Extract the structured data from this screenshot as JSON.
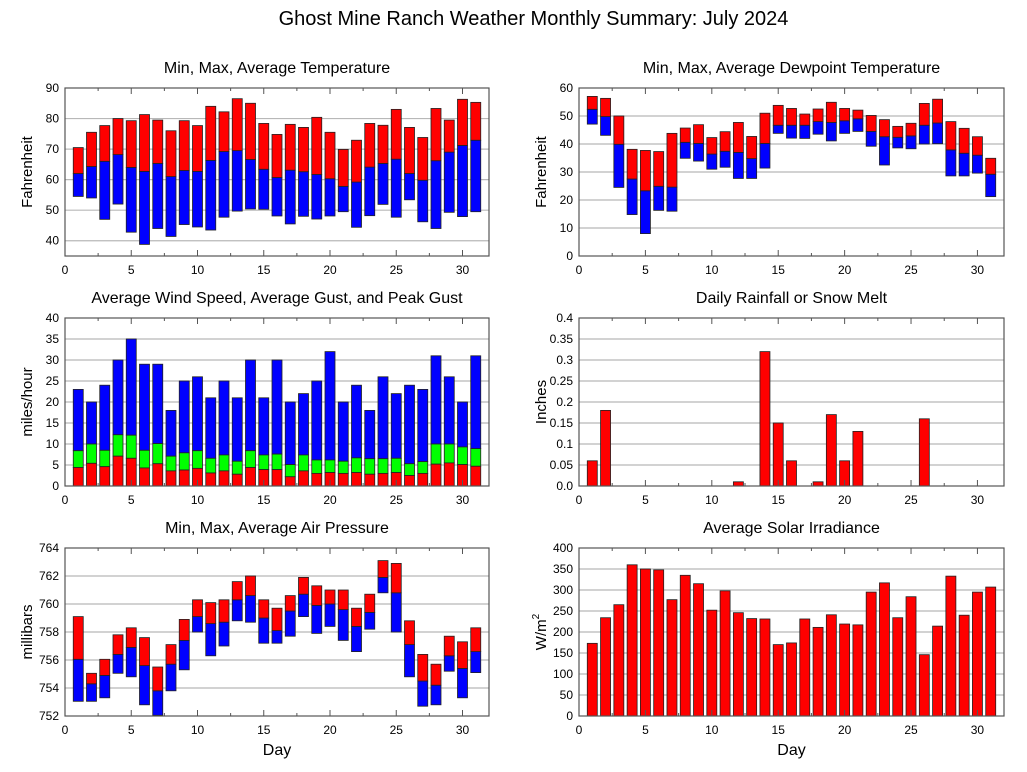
{
  "title": "Ghost Mine Ranch Weather Monthly Summary: July 2024",
  "colors": {
    "red": "#ff0000",
    "blue": "#0000ff",
    "green": "#00ff00",
    "grid": "#b8b8b8",
    "frame": "#555555"
  },
  "chart_data": [
    {
      "id": "temperature",
      "type": "bar",
      "title": "Min, Max, Average Temperature",
      "xlabel": "",
      "ylabel": "Fahrenheit",
      "xlim": [
        0,
        32
      ],
      "ylim": [
        35,
        90
      ],
      "xticks": [
        0,
        5,
        10,
        15,
        20,
        25,
        30
      ],
      "yticks": [
        40,
        50,
        60,
        70,
        80,
        90
      ],
      "grid": true,
      "x": [
        1,
        2,
        3,
        4,
        5,
        6,
        7,
        8,
        9,
        10,
        11,
        12,
        13,
        14,
        15,
        16,
        17,
        18,
        19,
        20,
        21,
        22,
        23,
        24,
        25,
        26,
        27,
        28,
        29,
        30,
        31
      ],
      "series": [
        {
          "name": "Min",
          "values": [
            54.5,
            54,
            47,
            52,
            42.8,
            38.8,
            44,
            41.4,
            45.3,
            44.5,
            43.5,
            47.7,
            49.7,
            50.4,
            50.3,
            48.1,
            45.5,
            48,
            47.1,
            48.1,
            49.5,
            44.4,
            48.2,
            51.9,
            47.7,
            53.4,
            46.2,
            44,
            49.3,
            47.9,
            49.5
          ]
        },
        {
          "name": "Average",
          "values": [
            62,
            64.3,
            66,
            68.2,
            64,
            62.7,
            65.3,
            61,
            63,
            62.7,
            66.3,
            69.2,
            69.5,
            66.6,
            63.4,
            60.7,
            63.1,
            62.6,
            61.7,
            60.3,
            57.8,
            59.2,
            64.1,
            65.3,
            66.7,
            62,
            59.8,
            66.2,
            69,
            71.2,
            72.9
          ]
        },
        {
          "name": "Max",
          "values": [
            70.5,
            75.5,
            77.7,
            80,
            79.3,
            81.3,
            79.5,
            76,
            79.3,
            77.7,
            84,
            82.2,
            86.5,
            85,
            78.4,
            74.8,
            78.1,
            77.1,
            80.4,
            75.5,
            69.9,
            72.9,
            78.4,
            77.8,
            83,
            77.1,
            73.8,
            83.3,
            79.5,
            86.3,
            85.3
          ]
        }
      ]
    },
    {
      "id": "dewpoint",
      "type": "bar",
      "title": "Min, Max, Average Dewpoint Temperature",
      "xlabel": "",
      "ylabel": "Fahrenheit",
      "xlim": [
        0,
        32
      ],
      "ylim": [
        0,
        60
      ],
      "xticks": [
        0,
        5,
        10,
        15,
        20,
        25,
        30
      ],
      "yticks": [
        0,
        10,
        20,
        30,
        40,
        50,
        60
      ],
      "grid": true,
      "x": [
        1,
        2,
        3,
        4,
        5,
        6,
        7,
        8,
        9,
        10,
        11,
        12,
        13,
        14,
        15,
        16,
        17,
        18,
        19,
        20,
        21,
        22,
        23,
        24,
        25,
        26,
        27,
        28,
        29,
        30,
        31
      ],
      "series": [
        {
          "name": "Min",
          "values": [
            47.1,
            43.1,
            24.5,
            14.8,
            8,
            16.3,
            16,
            34.9,
            33.9,
            31,
            31.7,
            27.7,
            27.7,
            31.4,
            43.8,
            42.1,
            42,
            43.5,
            41.1,
            43.8,
            44.5,
            39.2,
            32.5,
            38.6,
            38.3,
            40,
            40.1,
            28.6,
            28.6,
            29.6,
            21.2
          ]
        },
        {
          "name": "Average",
          "values": [
            52.4,
            49.8,
            39.9,
            27.5,
            23.3,
            24.9,
            24.6,
            40.6,
            40.2,
            36.4,
            37.4,
            37,
            34.8,
            40.2,
            46.7,
            46.7,
            46.7,
            48,
            47.7,
            48.3,
            49,
            44.5,
            42.6,
            42.4,
            42.9,
            46.7,
            47.5,
            37.9,
            36.7,
            36,
            29.2
          ]
        },
        {
          "name": "Max",
          "values": [
            57,
            56.3,
            50,
            38.1,
            37.7,
            37.3,
            43.8,
            45.7,
            46.9,
            42.3,
            44.4,
            47.7,
            42.7,
            51,
            53.8,
            52.7,
            50.7,
            52.5,
            54.9,
            52.7,
            52.1,
            50.2,
            48.7,
            46.3,
            47.4,
            54.5,
            56,
            48,
            45.6,
            42.6,
            34.9
          ]
        }
      ]
    },
    {
      "id": "wind",
      "type": "bar",
      "title": "Average Wind Speed, Average Gust, and Peak Gust",
      "xlabel": "",
      "ylabel": "miles/hour",
      "xlim": [
        0,
        32
      ],
      "ylim": [
        0,
        40
      ],
      "xticks": [
        0,
        5,
        10,
        15,
        20,
        25,
        30
      ],
      "yticks": [
        0,
        5,
        10,
        15,
        20,
        25,
        30,
        35,
        40
      ],
      "grid": true,
      "x": [
        1,
        2,
        3,
        4,
        5,
        6,
        7,
        8,
        9,
        10,
        11,
        12,
        13,
        14,
        15,
        16,
        17,
        18,
        19,
        20,
        21,
        22,
        23,
        24,
        25,
        26,
        27,
        28,
        29,
        30,
        31
      ],
      "series": [
        {
          "name": "Average Wind Speed",
          "values": [
            4.4,
            5.4,
            4.6,
            7.1,
            6.6,
            4.3,
            5.3,
            3.6,
            3.8,
            4.2,
            3.1,
            3.6,
            2.8,
            4.4,
            3.9,
            3.9,
            2.2,
            3.6,
            3,
            3.2,
            3,
            3.2,
            2.8,
            3,
            3.2,
            2.5,
            3,
            5.2,
            5.5,
            5.1,
            4.7
          ]
        },
        {
          "name": "Average Gust",
          "values": [
            8.4,
            10,
            8.5,
            12.2,
            12.1,
            8.5,
            10.1,
            7.1,
            7.9,
            8.4,
            6.6,
            7.4,
            5.9,
            8.4,
            7.4,
            7.6,
            5.1,
            7.4,
            6.2,
            6.2,
            5.9,
            6.7,
            6.5,
            6.5,
            6.6,
            5.3,
            5.8,
            10,
            10,
            9.3,
            8.9
          ]
        },
        {
          "name": "Peak Gust",
          "values": [
            23,
            20,
            24,
            30,
            35,
            29,
            29,
            18,
            25,
            26,
            21,
            25,
            21,
            30,
            21,
            30,
            20,
            22,
            25,
            32,
            20,
            24,
            18,
            26,
            22,
            24,
            23,
            31,
            26,
            20,
            31
          ]
        }
      ]
    },
    {
      "id": "rainfall",
      "type": "bar",
      "title": "Daily Rainfall or Snow Melt",
      "xlabel": "",
      "ylabel": "Inches",
      "xlim": [
        0,
        32
      ],
      "ylim": [
        0,
        0.4
      ],
      "xticks": [
        0,
        5,
        10,
        15,
        20,
        25,
        30
      ],
      "yticks": [
        0,
        0.05,
        0.1,
        0.15,
        0.2,
        0.25,
        0.3,
        0.35,
        0.4
      ],
      "ytick_labels": [
        "0.0",
        "0.05",
        "0.1",
        "0.15",
        "0.2",
        "0.25",
        "0.3",
        "0.35",
        "0.4"
      ],
      "grid": true,
      "x": [
        1,
        2,
        3,
        4,
        5,
        6,
        7,
        8,
        9,
        10,
        11,
        12,
        13,
        14,
        15,
        16,
        17,
        18,
        19,
        20,
        21,
        22,
        23,
        24,
        25,
        26,
        27,
        28,
        29,
        30,
        31
      ],
      "series": [
        {
          "name": "Rainfall",
          "values": [
            0.06,
            0.18,
            0,
            0,
            0,
            0,
            0,
            0,
            0,
            0,
            0,
            0.01,
            0,
            0.32,
            0.15,
            0.06,
            0,
            0.01,
            0.17,
            0.06,
            0.13,
            0,
            0,
            0,
            0,
            0.16,
            0,
            0,
            0,
            0,
            0
          ]
        }
      ]
    },
    {
      "id": "pressure",
      "type": "bar",
      "title": "Min, Max, Average Air Pressure",
      "xlabel": "Day",
      "ylabel": "millibars",
      "xlim": [
        0,
        32
      ],
      "ylim": [
        752,
        764
      ],
      "xticks": [
        0,
        5,
        10,
        15,
        20,
        25,
        30
      ],
      "yticks": [
        752,
        754,
        756,
        758,
        760,
        762,
        764
      ],
      "grid": true,
      "x": [
        1,
        2,
        3,
        4,
        5,
        6,
        7,
        8,
        9,
        10,
        11,
        12,
        13,
        14,
        15,
        16,
        17,
        18,
        19,
        20,
        21,
        22,
        23,
        24,
        25,
        26,
        27,
        28,
        29,
        30,
        31
      ],
      "series": [
        {
          "name": "Min",
          "values": [
            753.05,
            753.05,
            753.3,
            755.05,
            754.8,
            752.8,
            752.05,
            753.8,
            755.3,
            758,
            756.3,
            757,
            758.8,
            758.7,
            757.2,
            757.2,
            757.7,
            759.1,
            757.9,
            758.4,
            757.4,
            756.6,
            758.2,
            760.8,
            758,
            754.8,
            752.7,
            752.8,
            755.2,
            753.3,
            755.1
          ]
        },
        {
          "name": "Average",
          "values": [
            756.05,
            754.3,
            754.9,
            756.4,
            756.9,
            755.6,
            753.8,
            755.7,
            757.4,
            759.1,
            758.6,
            758.7,
            760.3,
            760.6,
            759,
            758.1,
            759.5,
            760.7,
            759.9,
            760,
            759.6,
            758.4,
            759.4,
            761.9,
            760.8,
            757.1,
            754.5,
            754.2,
            756.3,
            755.4,
            756.6
          ]
        },
        {
          "name": "Max",
          "values": [
            759.1,
            755.05,
            756.05,
            757.8,
            758.3,
            757.6,
            755.5,
            757.1,
            758.9,
            760.3,
            760.1,
            760.3,
            761.6,
            762,
            760.3,
            759.7,
            760.6,
            761.9,
            761.3,
            761,
            761,
            759.7,
            760.7,
            763.1,
            762.9,
            758.8,
            756.4,
            755.7,
            757.7,
            757.3,
            758.3
          ]
        }
      ]
    },
    {
      "id": "solar",
      "type": "bar",
      "title": "Average Solar Irradiance",
      "xlabel": "Day",
      "ylabel": "W/m",
      "ylabel_sup": "2",
      "xlim": [
        0,
        32
      ],
      "ylim": [
        0,
        400
      ],
      "xticks": [
        0,
        5,
        10,
        15,
        20,
        25,
        30
      ],
      "yticks": [
        0,
        50,
        100,
        150,
        200,
        250,
        300,
        350,
        400
      ],
      "grid": true,
      "x": [
        1,
        2,
        3,
        4,
        5,
        6,
        7,
        8,
        9,
        10,
        11,
        12,
        13,
        14,
        15,
        16,
        17,
        18,
        19,
        20,
        21,
        22,
        23,
        24,
        25,
        26,
        27,
        28,
        29,
        30,
        31
      ],
      "series": [
        {
          "name": "Solar Irradiance",
          "values": [
            173,
            234,
            265,
            360,
            350,
            348,
            277,
            335,
            315,
            252,
            298,
            246,
            232,
            231,
            170,
            174,
            231,
            211,
            241,
            219,
            217,
            295,
            317,
            234,
            284,
            146,
            214,
            333,
            240,
            295,
            307
          ]
        }
      ]
    }
  ]
}
